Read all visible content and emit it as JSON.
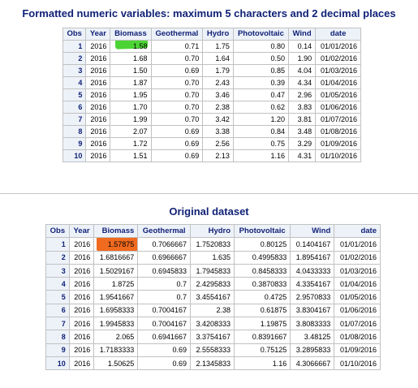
{
  "table1": {
    "title": "Formatted numeric variables: maximum 5 characters and 2 decimal places",
    "columns": [
      "Obs",
      "Year",
      "Biomass",
      "Geothermal",
      "Hydro",
      "Photovoltaic",
      "Wind",
      "date"
    ],
    "rows": [
      [
        "1",
        "2016",
        "1.58",
        "0.71",
        "1.75",
        "0.80",
        "0.14",
        "01/01/2016"
      ],
      [
        "2",
        "2016",
        "1.68",
        "0.70",
        "1.64",
        "0.50",
        "1.90",
        "01/02/2016"
      ],
      [
        "3",
        "2016",
        "1.50",
        "0.69",
        "1.79",
        "0.85",
        "4.04",
        "01/03/2016"
      ],
      [
        "4",
        "2016",
        "1.87",
        "0.70",
        "2.43",
        "0.39",
        "4.34",
        "01/04/2016"
      ],
      [
        "5",
        "2016",
        "1.95",
        "0.70",
        "3.46",
        "0.47",
        "2.96",
        "01/05/2016"
      ],
      [
        "6",
        "2016",
        "1.70",
        "0.70",
        "2.38",
        "0.62",
        "3.83",
        "01/06/2016"
      ],
      [
        "7",
        "2016",
        "1.99",
        "0.70",
        "3.42",
        "1.20",
        "3.81",
        "01/07/2016"
      ],
      [
        "8",
        "2016",
        "2.07",
        "0.69",
        "3.38",
        "0.84",
        "3.48",
        "01/08/2016"
      ],
      [
        "9",
        "2016",
        "1.72",
        "0.69",
        "2.56",
        "0.75",
        "3.29",
        "01/09/2016"
      ],
      [
        "10",
        "2016",
        "1.51",
        "0.69",
        "2.13",
        "1.16",
        "4.31",
        "01/10/2016"
      ]
    ]
  },
  "table2": {
    "title": "Original dataset",
    "columns": [
      "Obs",
      "Year",
      "Biomass",
      "Geothermal",
      "Hydro",
      "Photovoltaic",
      "Wind",
      "date"
    ],
    "rows": [
      [
        "1",
        "2016",
        "1.57875",
        "0.7066667",
        "1.7520833",
        "0.80125",
        "0.1404167",
        "01/01/2016"
      ],
      [
        "2",
        "2016",
        "1.6816667",
        "0.6966667",
        "1.635",
        "0.4995833",
        "1.8954167",
        "01/02/2016"
      ],
      [
        "3",
        "2016",
        "1.5029167",
        "0.6945833",
        "1.7945833",
        "0.8458333",
        "4.0433333",
        "01/03/2016"
      ],
      [
        "4",
        "2016",
        "1.8725",
        "0.7",
        "2.4295833",
        "0.3870833",
        "4.3354167",
        "01/04/2016"
      ],
      [
        "5",
        "2016",
        "1.9541667",
        "0.7",
        "3.4554167",
        "0.4725",
        "2.9570833",
        "01/05/2016"
      ],
      [
        "6",
        "2016",
        "1.6958333",
        "0.7004167",
        "2.38",
        "0.61875",
        "3.8304167",
        "01/06/2016"
      ],
      [
        "7",
        "2016",
        "1.9945833",
        "0.7004167",
        "3.4208333",
        "1.19875",
        "3.8083333",
        "01/07/2016"
      ],
      [
        "8",
        "2016",
        "2.065",
        "0.6941667",
        "3.3754167",
        "0.8391667",
        "3.48125",
        "01/08/2016"
      ],
      [
        "9",
        "2016",
        "1.7183333",
        "0.69",
        "2.5558333",
        "0.75125",
        "3.2895833",
        "01/09/2016"
      ],
      [
        "10",
        "2016",
        "1.50625",
        "0.69",
        "2.1345833",
        "1.16",
        "4.3066667",
        "01/10/2016"
      ]
    ]
  },
  "colors": {
    "header_text": "#112277",
    "header_bg": "#edf2f9",
    "border": "#c1c1c1",
    "green_highlight": "#4cd435",
    "orange_highlight": "#f06a1f"
  }
}
